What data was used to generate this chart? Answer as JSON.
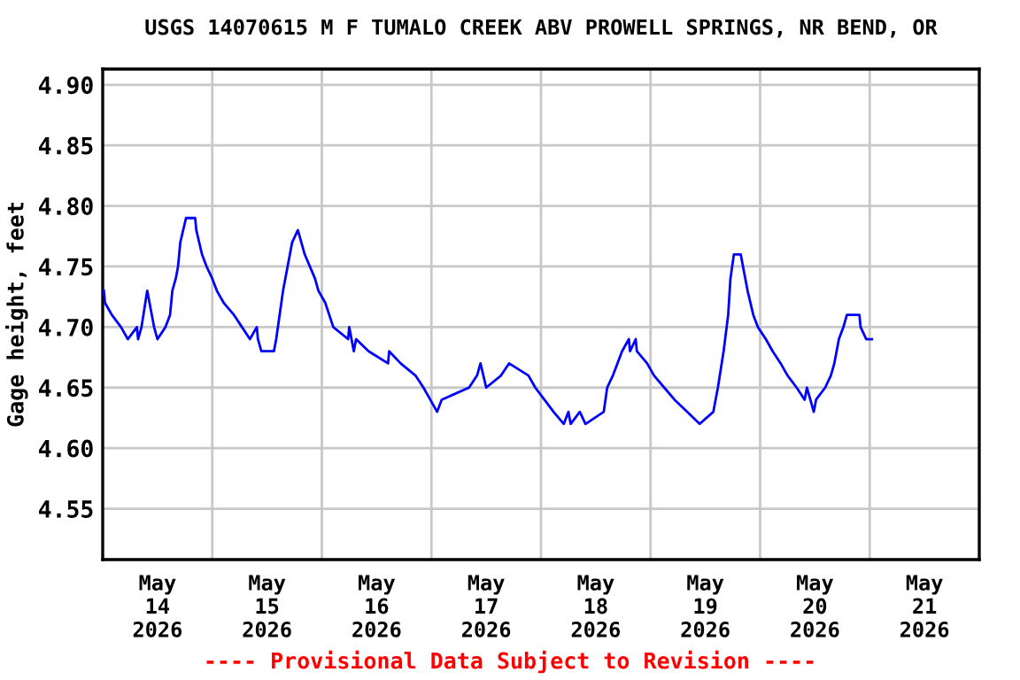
{
  "chart_data": {
    "type": "line",
    "title": "USGS 14070615 M F TUMALO CREEK ABV PROWELL SPRINGS, NR BEND, OR",
    "ylabel": "Gage height, feet",
    "annotations": [
      "---- Provisional Data Subject to Revision ----"
    ],
    "xlim": [
      "2026-05-14T00:00",
      "2026-05-22T00:00"
    ],
    "xticks": [
      {
        "value": "2026-05-14T12:00",
        "label": "May\n14\n2026"
      },
      {
        "value": "2026-05-15T12:00",
        "label": "May\n15\n2026"
      },
      {
        "value": "2026-05-16T12:00",
        "label": "May\n16\n2026"
      },
      {
        "value": "2026-05-17T12:00",
        "label": "May\n17\n2026"
      },
      {
        "value": "2026-05-18T12:00",
        "label": "May\n18\n2026"
      },
      {
        "value": "2026-05-19T12:00",
        "label": "May\n19\n2026"
      },
      {
        "value": "2026-05-20T12:00",
        "label": "May\n20\n2026"
      },
      {
        "value": "2026-05-21T12:00",
        "label": "May\n21\n2026"
      },
      {
        "value": "2026-05-15T00:00",
        "label": null
      },
      {
        "value": "2026-05-16T00:00",
        "label": null
      },
      {
        "value": "2026-05-17T00:00",
        "label": null
      },
      {
        "value": "2026-05-18T00:00",
        "label": null
      },
      {
        "value": "2026-05-19T00:00",
        "label": null
      },
      {
        "value": "2026-05-20T00:00",
        "label": null
      },
      {
        "value": "2026-05-21T00:00",
        "label": null
      }
    ],
    "ylim": [
      4.508,
      4.913
    ],
    "yticks": [
      {
        "value": 4.55,
        "label": "4.55"
      },
      {
        "value": 4.6,
        "label": "4.60"
      },
      {
        "value": 4.65,
        "label": "4.65"
      },
      {
        "value": 4.7,
        "label": "4.70"
      },
      {
        "value": 4.75,
        "label": "4.75"
      },
      {
        "value": 4.8,
        "label": "4.80"
      },
      {
        "value": 4.85,
        "label": "4.85"
      },
      {
        "value": 4.9,
        "label": "4.90"
      }
    ],
    "grid": true,
    "legend": false,
    "marker": "none",
    "line_style": "solid",
    "series": [
      {
        "color": "#0000ff",
        "x": [
          "2026-05-14T00:15",
          "2026-05-14T00:30",
          "2026-05-14T02:00",
          "2026-05-14T04:00",
          "2026-05-14T05:30",
          "2026-05-14T07:30",
          "2026-05-14T07:45",
          "2026-05-14T08:30",
          "2026-05-14T09:45",
          "2026-05-14T11:15",
          "2026-05-14T12:00",
          "2026-05-14T13:45",
          "2026-05-14T14:45",
          "2026-05-14T15:15",
          "2026-05-14T16:00",
          "2026-05-14T16:30",
          "2026-05-14T17:00",
          "2026-05-14T18:15",
          "2026-05-14T20:15",
          "2026-05-14T20:30",
          "2026-05-14T21:45",
          "2026-05-14T22:45",
          "2026-05-15T00:00",
          "2026-05-15T01:00",
          "2026-05-15T02:30",
          "2026-05-15T04:45",
          "2026-05-15T06:30",
          "2026-05-15T08:15",
          "2026-05-15T09:45",
          "2026-05-15T10:00",
          "2026-05-15T10:45",
          "2026-05-15T13:30",
          "2026-05-15T14:00",
          "2026-05-15T14:45",
          "2026-05-15T15:30",
          "2026-05-15T16:30",
          "2026-05-15T17:30",
          "2026-05-15T18:45",
          "2026-05-15T19:30",
          "2026-05-15T20:15",
          "2026-05-15T22:30",
          "2026-05-15T23:15",
          "2026-05-16T00:45",
          "2026-05-16T02:30",
          "2026-05-16T05:45",
          "2026-05-16T06:00",
          "2026-05-16T06:30",
          "2026-05-16T07:00",
          "2026-05-16T07:30",
          "2026-05-16T10:15",
          "2026-05-16T14:30",
          "2026-05-16T14:45",
          "2026-05-16T17:15",
          "2026-05-16T20:30",
          "2026-05-16T22:15",
          "2026-05-16T23:45",
          "2026-05-17T01:15",
          "2026-05-17T02:15",
          "2026-05-17T08:15",
          "2026-05-17T10:00",
          "2026-05-17T10:45",
          "2026-05-17T12:00",
          "2026-05-17T15:15",
          "2026-05-17T17:00",
          "2026-05-17T21:15",
          "2026-05-17T22:45",
          "2026-05-18T00:45",
          "2026-05-18T02:45",
          "2026-05-18T05:00",
          "2026-05-18T06:00",
          "2026-05-18T06:30",
          "2026-05-18T08:30",
          "2026-05-18T09:45",
          "2026-05-18T13:45",
          "2026-05-18T14:30",
          "2026-05-18T15:45",
          "2026-05-18T16:45",
          "2026-05-18T17:45",
          "2026-05-18T19:15",
          "2026-05-18T19:30",
          "2026-05-18T20:45",
          "2026-05-18T21:00",
          "2026-05-18T23:15",
          "2026-05-19T00:45",
          "2026-05-19T03:00",
          "2026-05-19T05:15",
          "2026-05-19T08:00",
          "2026-05-19T10:45",
          "2026-05-19T13:45",
          "2026-05-19T14:45",
          "2026-05-19T16:00",
          "2026-05-19T17:00",
          "2026-05-19T17:30",
          "2026-05-19T18:15",
          "2026-05-19T19:45",
          "2026-05-19T20:15",
          "2026-05-19T21:15",
          "2026-05-19T22:30",
          "2026-05-19T23:30",
          "2026-05-20T01:15",
          "2026-05-20T02:45",
          "2026-05-20T04:30",
          "2026-05-20T06:00",
          "2026-05-20T08:00",
          "2026-05-20T09:45",
          "2026-05-20T10:15",
          "2026-05-20T11:00",
          "2026-05-20T11:45",
          "2026-05-20T12:15",
          "2026-05-20T14:15",
          "2026-05-20T15:30",
          "2026-05-20T16:15",
          "2026-05-20T17:15",
          "2026-05-20T18:15",
          "2026-05-20T19:00",
          "2026-05-20T21:45",
          "2026-05-20T22:00",
          "2026-05-20T23:15",
          "2026-05-21T00:30"
        ],
        "values": [
          4.73,
          4.72,
          4.71,
          4.7,
          4.69,
          4.7,
          4.69,
          4.7,
          4.73,
          4.7,
          4.69,
          4.7,
          4.71,
          4.73,
          4.74,
          4.75,
          4.77,
          4.79,
          4.79,
          4.78,
          4.76,
          4.75,
          4.74,
          4.73,
          4.72,
          4.71,
          4.7,
          4.69,
          4.7,
          4.69,
          4.68,
          4.68,
          4.69,
          4.71,
          4.73,
          4.75,
          4.77,
          4.78,
          4.77,
          4.76,
          4.74,
          4.73,
          4.72,
          4.7,
          4.69,
          4.7,
          4.69,
          4.68,
          4.69,
          4.68,
          4.67,
          4.68,
          4.67,
          4.66,
          4.65,
          4.64,
          4.63,
          4.64,
          4.65,
          4.66,
          4.67,
          4.65,
          4.66,
          4.67,
          4.66,
          4.65,
          4.64,
          4.63,
          4.62,
          4.63,
          4.62,
          4.63,
          4.62,
          4.63,
          4.65,
          4.66,
          4.67,
          4.68,
          4.69,
          4.68,
          4.69,
          4.68,
          4.67,
          4.66,
          4.65,
          4.64,
          4.63,
          4.62,
          4.63,
          4.65,
          4.68,
          4.71,
          4.74,
          4.76,
          4.76,
          4.75,
          4.73,
          4.71,
          4.7,
          4.69,
          4.68,
          4.67,
          4.66,
          4.65,
          4.64,
          4.65,
          4.64,
          4.63,
          4.64,
          4.65,
          4.66,
          4.67,
          4.69,
          4.7,
          4.71,
          4.71,
          4.7,
          4.69,
          4.69
        ]
      }
    ]
  }
}
